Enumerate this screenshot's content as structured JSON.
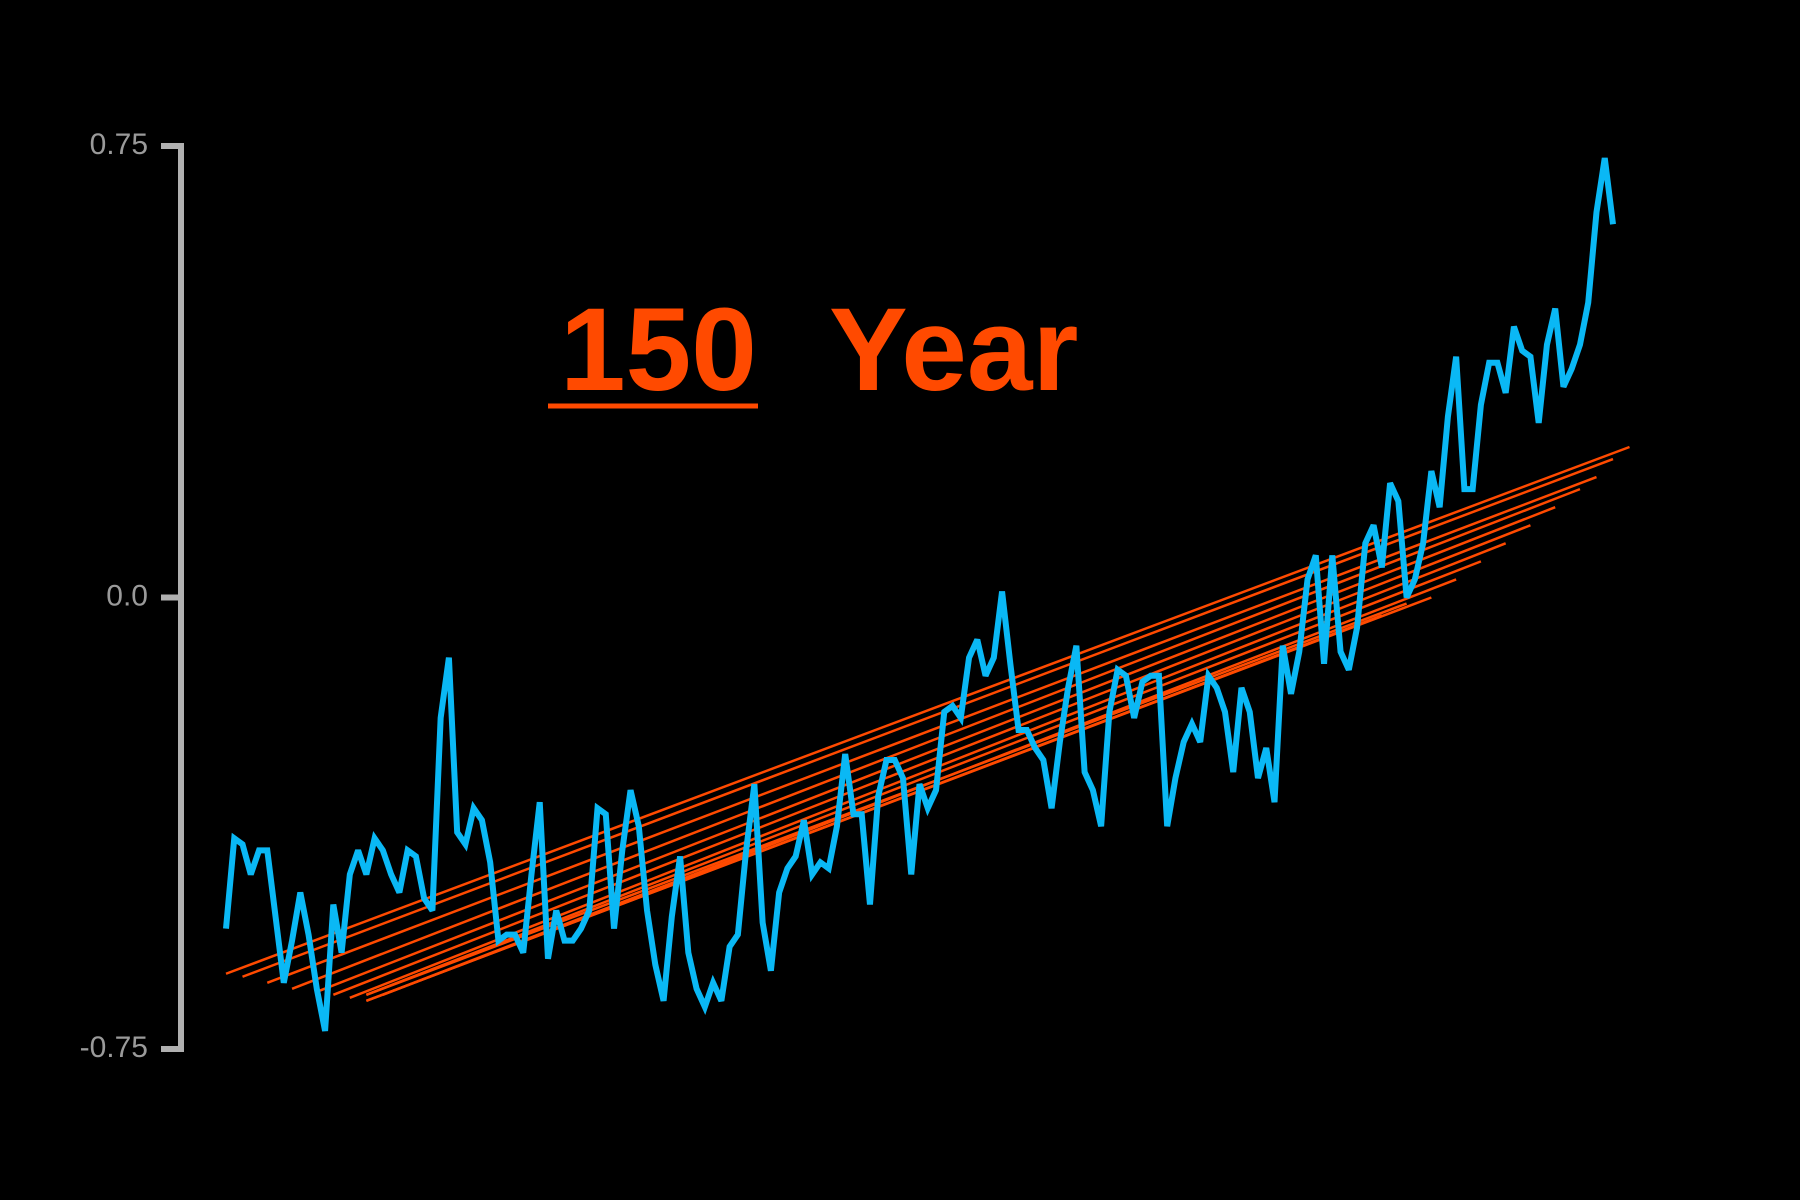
{
  "chart_data": {
    "type": "line",
    "title_number": "150",
    "title_unit": "Year",
    "ylim": [
      -0.75,
      0.75
    ],
    "yticks": [
      {
        "value": 0.75,
        "label": "0.75"
      },
      {
        "value": 0.0,
        "label": "0.0"
      },
      {
        "value": -0.75,
        "label": "-0.75"
      }
    ],
    "series": [
      {
        "color": "#0ab8f5",
        "values": [
          -0.55,
          -0.4,
          -0.41,
          -0.46,
          -0.42,
          -0.42,
          -0.53,
          -0.64,
          -0.57,
          -0.49,
          -0.56,
          -0.65,
          -0.72,
          -0.51,
          -0.59,
          -0.46,
          -0.42,
          -0.46,
          -0.4,
          -0.42,
          -0.46,
          -0.49,
          -0.42,
          -0.43,
          -0.5,
          -0.52,
          -0.2,
          -0.1,
          -0.39,
          -0.41,
          -0.35,
          -0.37,
          -0.44,
          -0.57,
          -0.56,
          -0.56,
          -0.59,
          -0.46,
          -0.34,
          -0.6,
          -0.52,
          -0.57,
          -0.57,
          -0.55,
          -0.52,
          -0.35,
          -0.36,
          -0.55,
          -0.42,
          -0.32,
          -0.38,
          -0.52,
          -0.61,
          -0.67,
          -0.53,
          -0.43,
          -0.59,
          -0.65,
          -0.68,
          -0.64,
          -0.67,
          -0.58,
          -0.56,
          -0.42,
          -0.31,
          -0.54,
          -0.62,
          -0.49,
          -0.45,
          -0.43,
          -0.37,
          -0.46,
          -0.44,
          -0.45,
          -0.38,
          -0.26,
          -0.36,
          -0.36,
          -0.51,
          -0.33,
          -0.27,
          -0.27,
          -0.3,
          -0.46,
          -0.31,
          -0.35,
          -0.32,
          -0.19,
          -0.18,
          -0.2,
          -0.1,
          -0.07,
          -0.13,
          -0.1,
          0.01,
          -0.11,
          -0.22,
          -0.22,
          -0.25,
          -0.27,
          -0.35,
          -0.24,
          -0.15,
          -0.08,
          -0.29,
          -0.32,
          -0.38,
          -0.19,
          -0.12,
          -0.13,
          -0.2,
          -0.14,
          -0.13,
          -0.13,
          -0.38,
          -0.3,
          -0.24,
          -0.21,
          -0.24,
          -0.13,
          -0.15,
          -0.19,
          -0.29,
          -0.15,
          -0.19,
          -0.3,
          -0.25,
          -0.34,
          -0.08,
          -0.16,
          -0.09,
          0.03,
          0.07,
          -0.11,
          0.07,
          -0.09,
          -0.12,
          -0.05,
          0.09,
          0.12,
          0.05,
          0.19,
          0.16,
          0.0,
          0.03,
          0.09,
          0.21,
          0.15,
          0.3,
          0.4,
          0.18,
          0.18,
          0.32,
          0.39,
          0.39,
          0.34,
          0.45,
          0.41,
          0.4,
          0.29,
          0.42,
          0.48,
          0.35,
          0.38,
          0.42,
          0.49,
          0.64,
          0.73,
          0.62
        ]
      }
    ],
    "trend_color": "#ff4a00",
    "trend_lines": [
      {
        "x": [
          0,
          170
        ],
        "values": [
          -0.625,
          0.25
        ]
      },
      {
        "x": [
          2,
          168
        ],
        "values": [
          -0.63,
          0.23
        ]
      },
      {
        "x": [
          5,
          166
        ],
        "values": [
          -0.64,
          0.2
        ]
      },
      {
        "x": [
          8,
          164
        ],
        "values": [
          -0.65,
          0.18
        ]
      },
      {
        "x": [
          11,
          161
        ],
        "values": [
          -0.655,
          0.15
        ]
      },
      {
        "x": [
          13,
          158
        ],
        "values": [
          -0.66,
          0.12
        ]
      },
      {
        "x": [
          15,
          155
        ],
        "values": [
          -0.665,
          0.09
        ]
      },
      {
        "x": [
          17,
          152
        ],
        "values": [
          -0.66,
          0.06
        ]
      },
      {
        "x": [
          19,
          149
        ],
        "values": [
          -0.66,
          0.03
        ]
      },
      {
        "x": [
          17,
          146
        ],
        "values": [
          -0.67,
          0.0
        ]
      },
      {
        "x": [
          17,
          143
        ],
        "values": [
          -0.66,
          -0.01
        ]
      },
      {
        "x": [
          17,
          140
        ],
        "values": [
          -0.67,
          -0.03
        ]
      }
    ]
  }
}
